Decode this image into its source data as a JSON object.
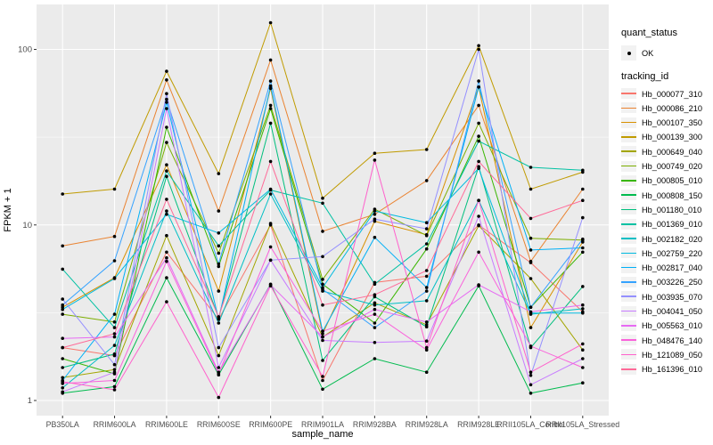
{
  "chart_data": {
    "type": "line",
    "title": "",
    "xlabel": "sample_name",
    "ylabel": "FPKM + 1",
    "x_categories": [
      "PB350LA",
      "RRIM600LA",
      "RRIM600LE",
      "RRIM600SE",
      "RRIM600PE",
      "RRIM901LA",
      "RRIM928BA",
      "RRIM928LA",
      "RRIM928LE",
      "RRII105LA_Control",
      "RRII105LA_Stressed"
    ],
    "y_axis": {
      "scale": "log10",
      "ticks": [
        1,
        10,
        100
      ],
      "tick_labels": [
        "1",
        "10",
        "100"
      ],
      "minor_ticks": [
        3.1623,
        31.623
      ],
      "range_approx": [
        0.85,
        170
      ]
    },
    "grid": "on",
    "legend_position": "right",
    "point_shape": "black-dot",
    "series": [
      {
        "name": "Hb_000077_310",
        "color": "#F8766D",
        "values": [
          2.0,
          1.8,
          7.0,
          2.9,
          10.0,
          1.3,
          4.7,
          5.1,
          10.0,
          6.1,
          3.2
        ]
      },
      {
        "name": "Hb_000086_210",
        "color": "#EA8331",
        "values": [
          7.6,
          8.6,
          67,
          12.0,
          87,
          9.2,
          11.5,
          17.9,
          48,
          6.2,
          16.0
        ]
      },
      {
        "name": "Hb_000107_350",
        "color": "#D89000",
        "values": [
          3.4,
          5.0,
          22,
          4.2,
          60,
          2.4,
          10.5,
          8.8,
          61,
          2.6,
          8.0
        ]
      },
      {
        "name": "Hb_000139_300",
        "color": "#C09B00",
        "values": [
          15.0,
          16.0,
          75,
          19.6,
          142,
          14.2,
          25.6,
          26.9,
          105,
          16.0,
          20.0
        ]
      },
      {
        "name": "Hb_000649_040",
        "color": "#A3A500",
        "values": [
          1.35,
          1.5,
          8.7,
          1.8,
          10.2,
          2.3,
          3.6,
          2.7,
          9.9,
          4.95,
          1.94
        ]
      },
      {
        "name": "Hb_000749_020",
        "color": "#7CAE00",
        "values": [
          3.1,
          2.8,
          29.5,
          6.9,
          48,
          4.9,
          12.3,
          8.7,
          38,
          8.4,
          8.2
        ]
      },
      {
        "name": "Hb_000805_010",
        "color": "#39B600",
        "values": [
          1.73,
          1.42,
          36,
          5.8,
          46,
          4.6,
          2.76,
          7.3,
          32,
          3.4,
          7.0
        ]
      },
      {
        "name": "Hb_000808_150",
        "color": "#00BB4E",
        "values": [
          1.1,
          1.2,
          5.0,
          1.4,
          4.6,
          1.16,
          1.73,
          1.45,
          4.5,
          1.1,
          1.26
        ]
      },
      {
        "name": "Hb_001180_010",
        "color": "#00BF7D",
        "values": [
          1.54,
          1.84,
          18.9,
          2.96,
          38,
          1.69,
          3.9,
          2.63,
          21.5,
          2.0,
          4.46
        ]
      },
      {
        "name": "Hb_001369_010",
        "color": "#00C1A3",
        "values": [
          5.6,
          2.6,
          20.3,
          7.6,
          15.8,
          13.3,
          4.6,
          7.8,
          30,
          21.3,
          20.5
        ]
      },
      {
        "name": "Hb_002182_020",
        "color": "#00BFC4",
        "values": [
          1.18,
          2.06,
          12.0,
          2.76,
          15.0,
          4.2,
          3.5,
          3.7,
          13.8,
          3.1,
          3.33
        ]
      },
      {
        "name": "Hb_002759_220",
        "color": "#00BAE0",
        "values": [
          3.3,
          4.95,
          11.5,
          9.0,
          16.0,
          4.4,
          12.0,
          10.3,
          21.0,
          3.15,
          3.15
        ]
      },
      {
        "name": "Hb_002817_040",
        "color": "#00B0F6",
        "values": [
          1.3,
          3.1,
          50,
          2.9,
          62,
          2.48,
          8.5,
          4.4,
          61,
          7.2,
          7.4
        ]
      },
      {
        "name": "Hb_003226_250",
        "color": "#35A2FF",
        "values": [
          3.5,
          6.25,
          52,
          6.0,
          66,
          4.3,
          2.6,
          4.2,
          66,
          3.4,
          8.3
        ]
      },
      {
        "name": "Hb_003935_070",
        "color": "#9590FF",
        "values": [
          3.78,
          1.6,
          56,
          2.0,
          6.3,
          6.6,
          10.8,
          9.5,
          100,
          1.39,
          11.0
        ]
      },
      {
        "name": "Hb_004041_050",
        "color": "#C77CFF",
        "values": [
          1.12,
          1.45,
          46,
          1.54,
          6.3,
          2.2,
          2.14,
          2.18,
          11.2,
          1.23,
          1.73
        ]
      },
      {
        "name": "Hb_005563_010",
        "color": "#E76BF3",
        "values": [
          2.26,
          2.3,
          6.5,
          1.45,
          4.56,
          2.3,
          3.3,
          2.8,
          4.56,
          3.2,
          3.5
        ]
      },
      {
        "name": "Hb_048476_140",
        "color": "#FA62DB",
        "values": [
          1.25,
          1.3,
          6.2,
          1.42,
          7.5,
          2.48,
          3.1,
          1.94,
          7.0,
          2.04,
          1.54
        ]
      },
      {
        "name": "Hb_121089_050",
        "color": "#FF61CC",
        "values": [
          1.28,
          1.15,
          3.65,
          1.04,
          4.5,
          1.37,
          23.4,
          2.0,
          13.8,
          1.45,
          2.1
        ]
      },
      {
        "name": "Hb_161396_010",
        "color": "#FF6A98",
        "values": [
          2.0,
          2.4,
          14.0,
          3.0,
          23.0,
          3.5,
          4.0,
          5.5,
          23.0,
          10.9,
          13.8
        ]
      }
    ],
    "style": {
      "panel_bg": "#EBEBEB",
      "grid_color": "#FFFFFF",
      "tick_text_color": "#4D4D4D",
      "axis_title_color": "#000000",
      "point_color": "#000000",
      "legend_key_bg": "#F2F2F2"
    }
  },
  "legend": {
    "quant_status": {
      "title": "quant_status",
      "items": [
        {
          "label": "OK"
        }
      ]
    },
    "tracking": {
      "title": "tracking_id"
    }
  }
}
